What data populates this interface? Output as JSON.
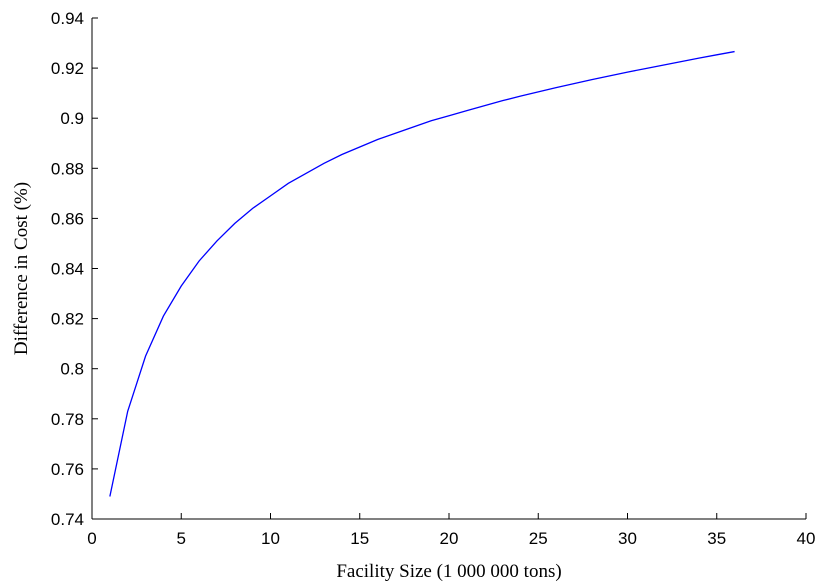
{
  "chart_data": {
    "type": "line",
    "xlabel": "Facility Size (1 000 000 tons)",
    "ylabel": "Difference in Cost (%)",
    "xlim": [
      0,
      40
    ],
    "ylim": [
      0.74,
      0.94
    ],
    "xticks": [
      0,
      5,
      10,
      15,
      20,
      25,
      30,
      35,
      40
    ],
    "xtick_labels": [
      "0",
      "5",
      "10",
      "15",
      "20",
      "25",
      "30",
      "35",
      "40"
    ],
    "yticks": [
      0.74,
      0.76,
      0.78,
      0.8,
      0.82,
      0.84,
      0.86,
      0.88,
      0.9,
      0.92,
      0.94
    ],
    "ytick_labels": [
      "0.74",
      "0.76",
      "0.78",
      "0.8",
      "0.82",
      "0.84",
      "0.86",
      "0.88",
      "0.9",
      "0.92",
      "0.94"
    ],
    "grid": false,
    "series": [
      {
        "color": "#0000ff",
        "x": [
          1,
          2,
          3,
          4,
          5,
          6,
          7,
          8,
          9,
          10,
          11,
          12,
          13,
          14,
          15,
          16,
          17,
          18,
          19,
          20,
          21,
          22,
          23,
          24,
          25,
          26,
          27,
          28,
          29,
          30,
          31,
          32,
          33,
          34,
          35,
          36
        ],
        "values": [
          0.749,
          0.783,
          0.805,
          0.821,
          0.833,
          0.843,
          0.851,
          0.858,
          0.864,
          0.869,
          0.874,
          0.878,
          0.882,
          0.8855,
          0.8885,
          0.8915,
          0.894,
          0.8965,
          0.899,
          0.901,
          0.903,
          0.905,
          0.907,
          0.9088,
          0.9105,
          0.9122,
          0.9138,
          0.9154,
          0.9169,
          0.9184,
          0.9198,
          0.9212,
          0.9226,
          0.924,
          0.9253,
          0.9266
        ]
      }
    ]
  }
}
